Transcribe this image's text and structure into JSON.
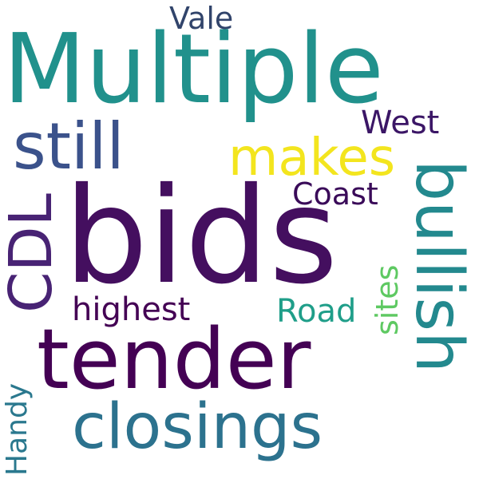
{
  "cloud": {
    "words": {
      "bids": "bids",
      "multiple": "Multiple",
      "tender": "tender",
      "closings": "closings",
      "bullish": "bullish",
      "still": "still",
      "makes": "makes",
      "cdl": "CDL",
      "coast": "Coast",
      "west": "West",
      "highest": "highest",
      "road": "Road",
      "sites": "sites",
      "handy": "Handy",
      "vale": "Vale"
    },
    "colors": {
      "bids": "#440f5f",
      "multiple": "#21918c",
      "tender": "#440154",
      "closings": "#2c728e",
      "bullish": "#23898e",
      "still": "#3b528b",
      "makes": "#f3e51e",
      "cdl": "#482374",
      "coast": "#3a0b59",
      "west": "#3b1666",
      "highest": "#440154",
      "road": "#1f9e89",
      "sites": "#5ec962",
      "handy": "#2a788e",
      "vale": "#31446b"
    }
  }
}
